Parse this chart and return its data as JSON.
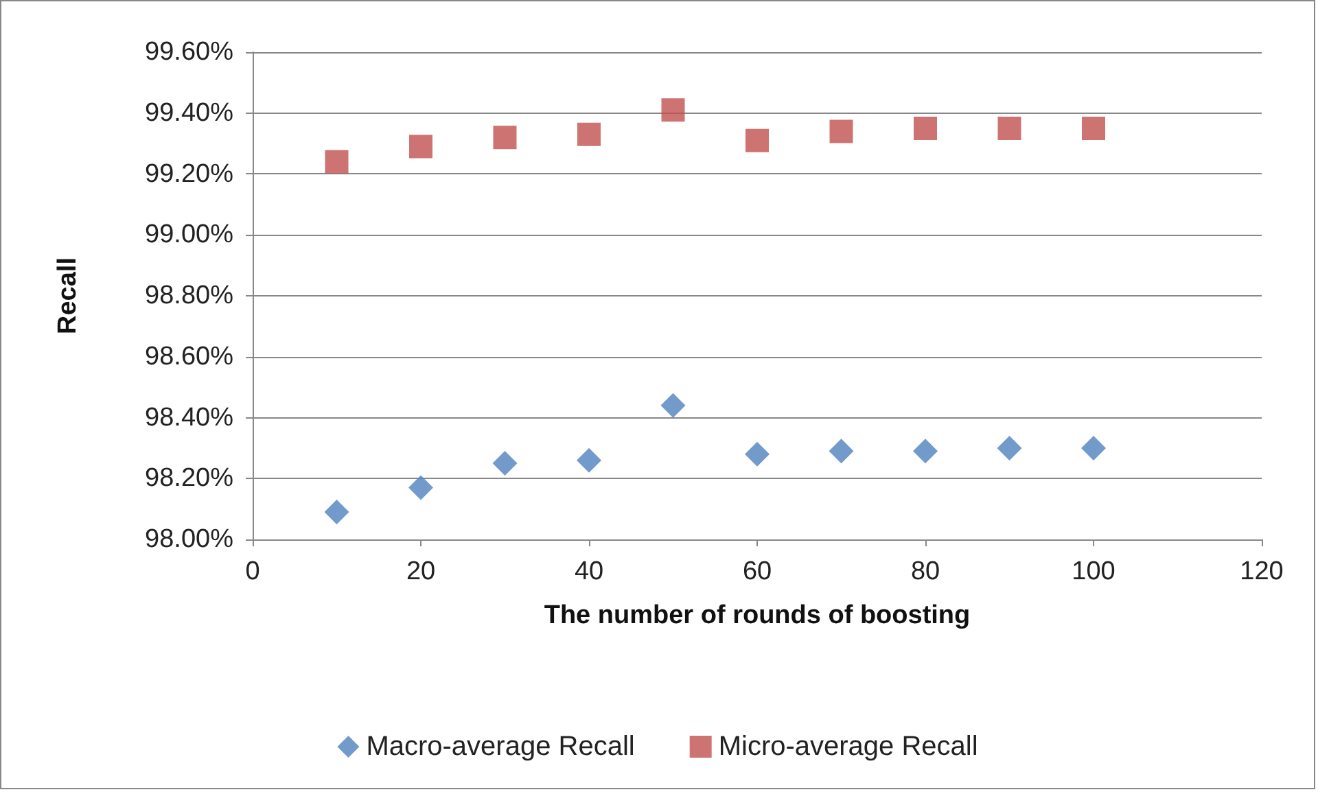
{
  "chart_data": {
    "type": "scatter",
    "xlabel": "The number of rounds of boosting",
    "ylabel": "Recall",
    "x": [
      10,
      20,
      30,
      40,
      50,
      60,
      70,
      80,
      90,
      100
    ],
    "series": [
      {
        "name": "Macro-average Recall",
        "color": "#4f81bd",
        "marker": "diamond",
        "values": [
          98.09,
          98.17,
          98.25,
          98.26,
          98.44,
          98.28,
          98.29,
          98.29,
          98.3,
          98.3
        ]
      },
      {
        "name": "Micro-average Recall",
        "color": "#c0504d",
        "marker": "square",
        "values": [
          99.24,
          99.29,
          99.32,
          99.33,
          99.41,
          99.31,
          99.34,
          99.35,
          99.35,
          99.35
        ]
      }
    ],
    "xlim": [
      0,
      120
    ],
    "xticks": [
      0,
      20,
      40,
      60,
      80,
      100,
      120
    ],
    "ylim": [
      98,
      99.6
    ],
    "yticks": [
      {
        "value": 98,
        "label": "98.00%"
      },
      {
        "value": 98.2,
        "label": "98.20%"
      },
      {
        "value": 98.4,
        "label": "98.40%"
      },
      {
        "value": 98.6,
        "label": "98.60%"
      },
      {
        "value": 98.8,
        "label": "98.80%"
      },
      {
        "value": 99,
        "label": "99.00%"
      },
      {
        "value": 99.2,
        "label": "99.20%"
      },
      {
        "value": 99.4,
        "label": "99.40%"
      },
      {
        "value": 99.6,
        "label": "99.60%"
      }
    ],
    "grid": "y",
    "legend": "bottom"
  }
}
